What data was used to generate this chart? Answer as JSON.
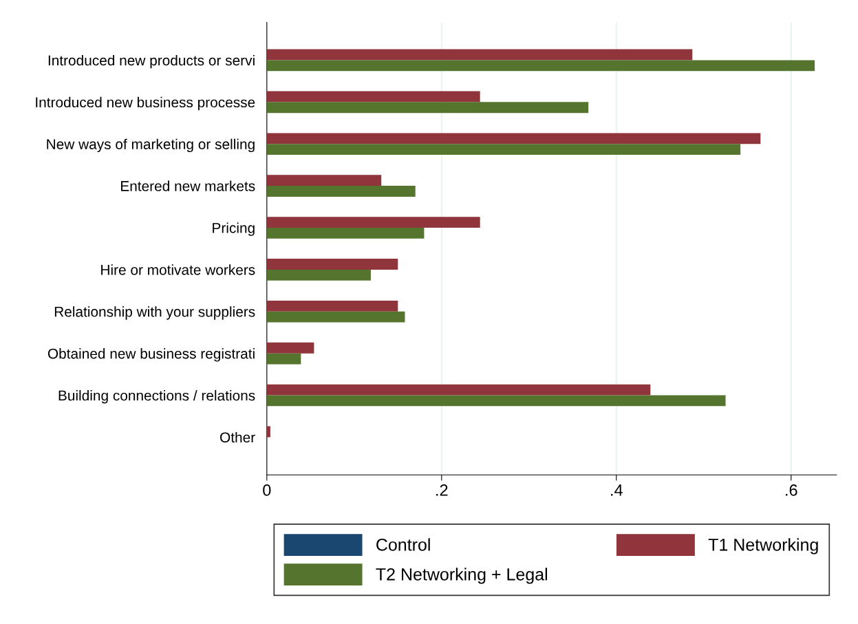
{
  "chart_data": {
    "type": "bar",
    "orientation": "horizontal",
    "categories": [
      "Introduced new products or servi",
      "Introduced new business processe",
      "New ways of marketing or selling",
      "Entered new markets",
      "Pricing",
      "Hire or motivate workers",
      "Relationship with your suppliers",
      "Obtained new business registrati",
      "Building connections / relations",
      "Other"
    ],
    "series": [
      {
        "name": "Control",
        "color": "#1a476f",
        "values": [
          null,
          null,
          null,
          null,
          null,
          null,
          null,
          null,
          null,
          null
        ]
      },
      {
        "name": "T1 Networking",
        "color": "#90353b",
        "values": [
          0.487,
          0.244,
          0.565,
          0.131,
          0.244,
          0.15,
          0.15,
          0.054,
          0.439,
          0.004
        ]
      },
      {
        "name": "T2 Networking + Legal",
        "color": "#55752f",
        "values": [
          0.627,
          0.368,
          0.542,
          0.17,
          0.18,
          0.119,
          0.158,
          0.039,
          0.525,
          null
        ]
      }
    ],
    "xlim": [
      0,
      0.652
    ],
    "xticks": [
      0,
      {
        "value": 0.2,
        "label": ".2"
      },
      {
        "value": 0.4,
        "label": ".4"
      },
      {
        "value": 0.6,
        "label": ".6"
      }
    ],
    "grid": "x",
    "legend": "bottom"
  }
}
